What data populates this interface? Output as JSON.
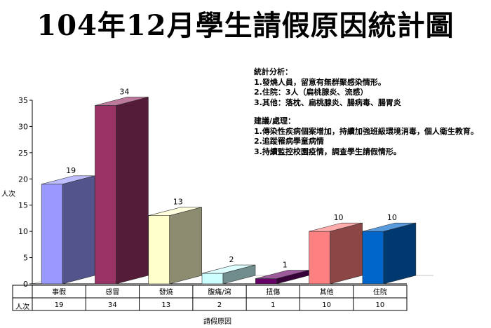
{
  "chart_data": {
    "type": "bar",
    "title": "104年12月學生請假原因統計圖",
    "categories": [
      "事假",
      "感冒",
      "發燒",
      "腹痛/瀉",
      "扭傷",
      "其他",
      "住院"
    ],
    "series": [
      {
        "name": "人次",
        "values": [
          19,
          34,
          13,
          2,
          1,
          10,
          10
        ]
      }
    ],
    "colors": [
      "#9999ff",
      "#993366",
      "#ffffcc",
      "#ccffff",
      "#660066",
      "#ff8080",
      "#0066cc"
    ],
    "xlabel": "請假原因",
    "ylabel": "人次",
    "ylim": [
      0,
      35
    ],
    "yticks": [
      "0",
      "5",
      "10",
      "15",
      "20",
      "25",
      "30",
      "35"
    ],
    "data_table": true,
    "grid": false
  },
  "notes": {
    "analysis_title": "統計分析：",
    "analysis": [
      "1.發燒人員，留意有無群聚感染情形。",
      "2.住院：3人（扁桃腺炎、流感）",
      "3.其他：落枕、扁桃腺炎、腸病毒、腸胃炎"
    ],
    "advice_title": "建議/處理：",
    "advice": [
      "1.傳染性疾病個案增加，持續加強班級環境消毒，個人衛生教育。",
      "2.追蹤罹病學童病情",
      "3.持續監控校園疫情，調查學生請假情形。"
    ]
  }
}
